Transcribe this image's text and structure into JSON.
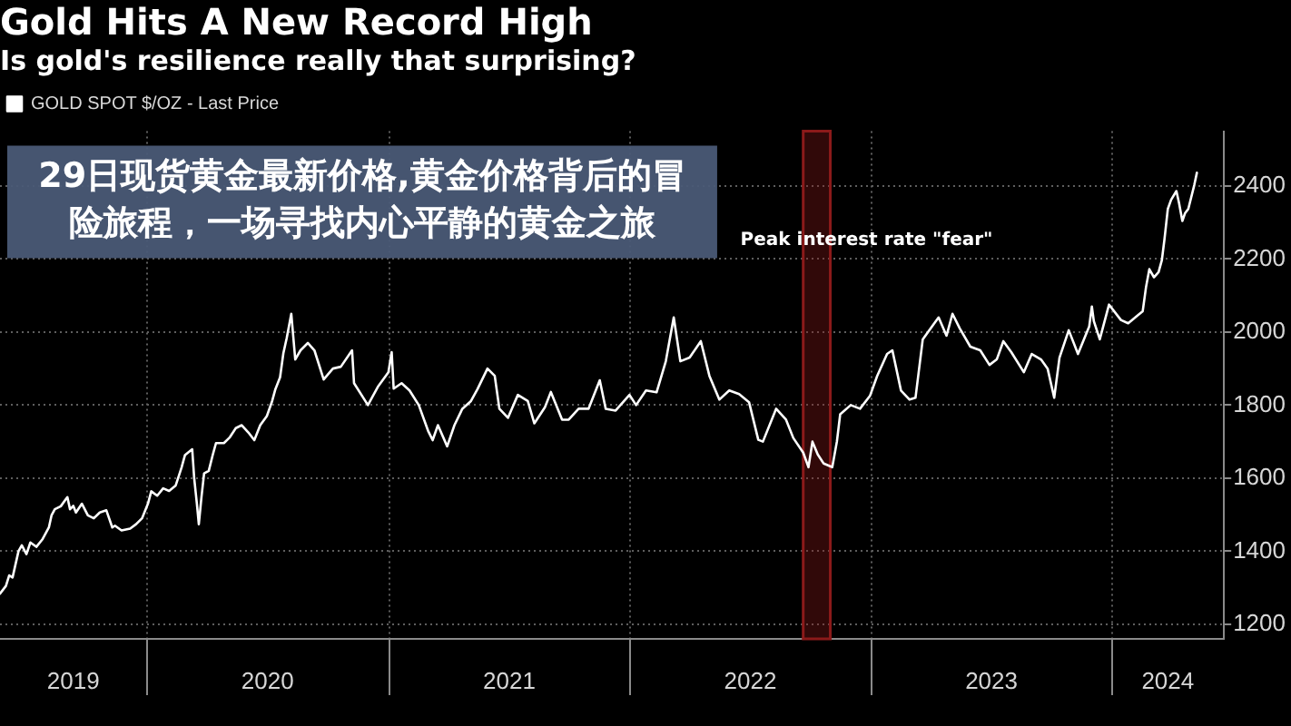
{
  "chart_data": {
    "type": "line",
    "title": "Gold Hits A New Record High",
    "subtitle": "Is gold's resilience really that surprising?",
    "x": [
      "2019-05-23",
      "2019-06-01",
      "2019-06-06",
      "2019-06-11",
      "2019-06-20",
      "2019-06-25",
      "2019-07-02",
      "2019-07-08",
      "2019-07-17",
      "2019-07-26",
      "2019-08-05",
      "2019-08-09",
      "2019-08-14",
      "2019-08-23",
      "2019-09-02",
      "2019-09-06",
      "2019-09-11",
      "2019-09-15",
      "2019-09-24",
      "2019-10-03",
      "2019-10-12",
      "2019-10-21",
      "2019-10-31",
      "2019-11-09",
      "2019-11-13",
      "2019-11-23",
      "2019-12-06",
      "2019-12-15",
      "2019-12-24",
      "2020-01-02",
      "2020-01-07",
      "2020-01-16",
      "2020-01-25",
      "2020-02-03",
      "2020-02-13",
      "2020-02-22",
      "2020-02-27",
      "2020-03-09",
      "2020-03-12",
      "2020-03-16",
      "2020-03-19",
      "2020-03-23",
      "2020-03-27",
      "2020-04-03",
      "2020-04-09",
      "2020-04-14",
      "2020-04-26",
      "2020-05-05",
      "2020-05-14",
      "2020-05-23",
      "2020-06-02",
      "2020-06-11",
      "2020-06-20",
      "2020-06-30",
      "2020-07-08",
      "2020-07-13",
      "2020-07-20",
      "2020-07-25",
      "2020-07-30",
      "2020-08-06",
      "2020-08-12",
      "2020-08-20",
      "2020-08-31",
      "2020-09-10",
      "2020-09-24",
      "2020-10-08",
      "2020-10-20",
      "2020-11-06",
      "2020-11-09",
      "2020-11-30",
      "2020-12-15",
      "2020-12-31",
      "2021-01-05",
      "2021-01-08",
      "2021-01-20",
      "2021-02-01",
      "2021-02-15",
      "2021-03-01",
      "2021-03-08",
      "2021-03-16",
      "2021-03-30",
      "2021-04-10",
      "2021-04-22",
      "2021-05-05",
      "2021-05-15",
      "2021-05-30",
      "2021-06-10",
      "2021-06-17",
      "2021-06-30",
      "2021-07-15",
      "2021-07-30",
      "2021-08-09",
      "2021-08-25",
      "2021-09-03",
      "2021-09-20",
      "2021-09-30",
      "2021-10-15",
      "2021-10-30",
      "2021-11-16",
      "2021-11-25",
      "2021-12-10",
      "2021-12-31",
      "2022-01-10",
      "2022-01-25",
      "2022-02-10",
      "2022-02-24",
      "2022-03-08",
      "2022-03-18",
      "2022-04-01",
      "2022-04-18",
      "2022-05-01",
      "2022-05-16",
      "2022-05-31",
      "2022-06-15",
      "2022-06-30",
      "2022-07-14",
      "2022-07-21",
      "2022-08-10",
      "2022-08-25",
      "2022-09-05",
      "2022-09-20",
      "2022-09-28",
      "2022-10-04",
      "2022-10-12",
      "2022-10-21",
      "2022-11-03",
      "2022-11-10",
      "2022-11-15",
      "2022-12-01",
      "2022-12-15",
      "2022-12-30",
      "2023-01-10",
      "2023-01-25",
      "2023-02-02",
      "2023-02-15",
      "2023-02-28",
      "2023-03-09",
      "2023-03-20",
      "2023-04-05",
      "2023-04-13",
      "2023-04-25",
      "2023-05-04",
      "2023-05-15",
      "2023-05-31",
      "2023-06-15",
      "2023-06-29",
      "2023-07-10",
      "2023-07-20",
      "2023-08-01",
      "2023-08-20",
      "2023-09-01",
      "2023-09-15",
      "2023-09-25",
      "2023-10-05",
      "2023-10-13",
      "2023-10-27",
      "2023-11-10",
      "2023-11-27",
      "2023-12-01",
      "2023-12-04",
      "2023-12-13",
      "2023-12-27",
      "2024-01-14",
      "2024-01-25",
      "2024-02-08",
      "2024-02-16",
      "2024-02-21",
      "2024-02-26",
      "2024-03-04",
      "2024-03-11",
      "2024-03-16",
      "2024-03-20",
      "2024-03-25",
      "2024-03-30",
      "2024-04-07",
      "2024-04-11",
      "2024-04-16",
      "2024-04-20",
      "2024-04-25",
      "2024-05-04",
      "2024-05-08"
    ],
    "series": [
      {
        "name": "GOLD SPOT $/OZ - Last Price",
        "color": "#ffffff",
        "values": [
          1284,
          1305,
          1334,
          1328,
          1400,
          1416,
          1392,
          1424,
          1412,
          1432,
          1465,
          1498,
          1515,
          1523,
          1548,
          1515,
          1524,
          1506,
          1530,
          1498,
          1490,
          1506,
          1512,
          1465,
          1470,
          1457,
          1462,
          1474,
          1490,
          1530,
          1564,
          1552,
          1572,
          1565,
          1580,
          1630,
          1663,
          1679,
          1600,
          1531,
          1474,
          1548,
          1613,
          1620,
          1663,
          1696,
          1696,
          1712,
          1737,
          1745,
          1725,
          1704,
          1745,
          1770,
          1811,
          1844,
          1876,
          1942,
          1983,
          2050,
          1925,
          1950,
          1970,
          1950,
          1870,
          1900,
          1905,
          1950,
          1860,
          1800,
          1850,
          1890,
          1945,
          1845,
          1860,
          1840,
          1800,
          1730,
          1704,
          1745,
          1687,
          1745,
          1790,
          1811,
          1844,
          1900,
          1880,
          1790,
          1765,
          1828,
          1811,
          1750,
          1794,
          1836,
          1760,
          1760,
          1790,
          1790,
          1868,
          1790,
          1785,
          1828,
          1800,
          1840,
          1835,
          1920,
          2040,
          1920,
          1930,
          1975,
          1880,
          1815,
          1840,
          1830,
          1808,
          1705,
          1700,
          1790,
          1760,
          1710,
          1670,
          1630,
          1700,
          1665,
          1640,
          1630,
          1700,
          1775,
          1800,
          1790,
          1825,
          1880,
          1940,
          1950,
          1840,
          1815,
          1820,
          1980,
          2020,
          2040,
          1990,
          2050,
          2010,
          1960,
          1950,
          1910,
          1925,
          1975,
          1945,
          1890,
          1940,
          1925,
          1900,
          1820,
          1930,
          2005,
          1940,
          2015,
          2070,
          2030,
          1980,
          2075,
          2033,
          2024,
          2045,
          2057,
          2123,
          2172,
          2150,
          2164,
          2197,
          2255,
          2337,
          2362,
          2386,
          2353,
          2304,
          2325,
          2337,
          2402,
          2436
        ]
      }
    ],
    "xlim": [
      "2019-05-23",
      "2024-06-18"
    ],
    "xticks": [
      {
        "value": "2019-09-11",
        "label": "2019"
      },
      {
        "value": "2020-01-01",
        "label": null
      },
      {
        "value": "2020-07-01",
        "label": "2020"
      },
      {
        "value": "2021-01-01",
        "label": null
      },
      {
        "value": "2021-07-02",
        "label": "2021"
      },
      {
        "value": "2022-01-01",
        "label": null
      },
      {
        "value": "2022-07-02",
        "label": "2022"
      },
      {
        "value": "2023-01-01",
        "label": null
      },
      {
        "value": "2023-07-02",
        "label": "2023"
      },
      {
        "value": "2024-01-01",
        "label": null
      },
      {
        "value": "2024-03-25",
        "label": "2024"
      }
    ],
    "ylim": [
      1160,
      2550
    ],
    "yticks": [
      1200,
      1400,
      1600,
      1800,
      2000,
      2200,
      2400
    ],
    "grid": true,
    "legend": "top left",
    "marker": "none",
    "bands": [
      {
        "axis": "x",
        "from": "2022-09-20",
        "to": "2022-10-31",
        "label": "Peak interest rate \"fear\"",
        "color": "#8b1a1a"
      }
    ],
    "annotations": [
      "29日现货黄金最新价格,黄金价格背后的冒险旅程，一场寻找内心平静的黄金之旅"
    ]
  }
}
